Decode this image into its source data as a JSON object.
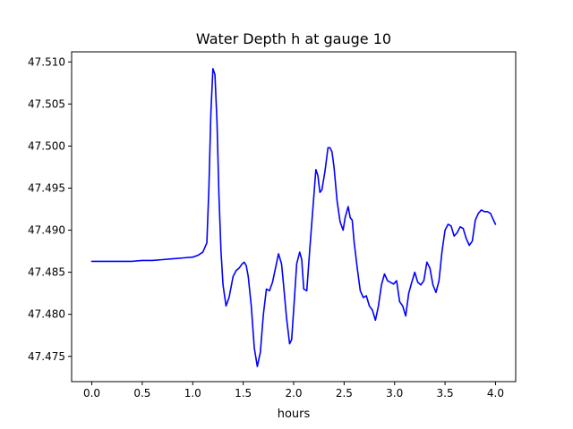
{
  "chart_data": {
    "type": "line",
    "title": "Water Depth h at gauge 10",
    "xlabel": "hours",
    "ylabel": "",
    "xlim": [
      -0.2,
      4.2
    ],
    "ylim": [
      47.472,
      47.5112
    ],
    "xticks": [
      0.0,
      0.5,
      1.0,
      1.5,
      2.0,
      2.5,
      3.0,
      3.5,
      4.0
    ],
    "xtick_labels": [
      "0.0",
      "0.5",
      "1.0",
      "1.5",
      "2.0",
      "2.5",
      "3.0",
      "3.5",
      "4.0"
    ],
    "yticks": [
      47.475,
      47.48,
      47.485,
      47.49,
      47.495,
      47.5,
      47.505,
      47.51
    ],
    "ytick_labels": [
      "47.475",
      "47.480",
      "47.485",
      "47.490",
      "47.495",
      "47.500",
      "47.505",
      "47.510"
    ],
    "grid": false,
    "series": [
      {
        "color": "#0000ff",
        "x": [
          0.0,
          0.1,
          0.2,
          0.3,
          0.4,
          0.5,
          0.6,
          0.7,
          0.8,
          0.9,
          1.0,
          1.05,
          1.1,
          1.14,
          1.16,
          1.18,
          1.2,
          1.22,
          1.24,
          1.26,
          1.28,
          1.3,
          1.33,
          1.36,
          1.4,
          1.43,
          1.46,
          1.49,
          1.51,
          1.53,
          1.55,
          1.58,
          1.61,
          1.64,
          1.67,
          1.7,
          1.73,
          1.76,
          1.79,
          1.82,
          1.85,
          1.88,
          1.9,
          1.93,
          1.96,
          1.98,
          2.0,
          2.03,
          2.06,
          2.08,
          2.1,
          2.13,
          2.16,
          2.19,
          2.22,
          2.24,
          2.26,
          2.28,
          2.31,
          2.34,
          2.36,
          2.38,
          2.4,
          2.43,
          2.46,
          2.49,
          2.51,
          2.54,
          2.56,
          2.58,
          2.6,
          2.63,
          2.66,
          2.69,
          2.72,
          2.75,
          2.78,
          2.81,
          2.84,
          2.87,
          2.9,
          2.93,
          2.96,
          2.99,
          3.02,
          3.05,
          3.08,
          3.11,
          3.14,
          3.17,
          3.2,
          3.23,
          3.26,
          3.29,
          3.32,
          3.35,
          3.38,
          3.41,
          3.44,
          3.47,
          3.5,
          3.53,
          3.56,
          3.59,
          3.62,
          3.65,
          3.68,
          3.71,
          3.74,
          3.77,
          3.8,
          3.83,
          3.86,
          3.89,
          3.92,
          3.95,
          3.98,
          4.0
        ],
        "y": [
          47.4863,
          47.4863,
          47.4863,
          47.4863,
          47.4863,
          47.4864,
          47.4864,
          47.4865,
          47.4866,
          47.4867,
          47.4868,
          47.487,
          47.4874,
          47.4885,
          47.495,
          47.504,
          47.5092,
          47.5085,
          47.503,
          47.494,
          47.4875,
          47.4835,
          47.481,
          47.482,
          47.4845,
          47.4852,
          47.4855,
          47.486,
          47.4862,
          47.4858,
          47.4845,
          47.481,
          47.476,
          47.4738,
          47.4755,
          47.48,
          47.483,
          47.4828,
          47.4838,
          47.4855,
          47.4872,
          47.486,
          47.4835,
          47.4795,
          47.4765,
          47.477,
          47.4805,
          47.486,
          47.4874,
          47.4865,
          47.483,
          47.4828,
          47.4878,
          47.4925,
          47.4972,
          47.4965,
          47.4945,
          47.4948,
          47.497,
          47.4998,
          47.4998,
          47.4993,
          47.4975,
          47.4935,
          47.491,
          47.49,
          47.4915,
          47.4928,
          47.4915,
          47.4912,
          47.4885,
          47.4855,
          47.4828,
          47.482,
          47.4822,
          47.481,
          47.4805,
          47.4793,
          47.481,
          47.4835,
          47.4848,
          47.484,
          47.4838,
          47.4836,
          47.484,
          47.4815,
          47.481,
          47.4798,
          47.4825,
          47.4838,
          47.485,
          47.4838,
          47.4835,
          47.484,
          47.4862,
          47.4855,
          47.4835,
          47.4826,
          47.484,
          47.4875,
          47.49,
          47.4907,
          47.4905,
          47.4893,
          47.4897,
          47.4904,
          47.4902,
          47.489,
          47.4882,
          47.4887,
          47.4912,
          47.492,
          47.4924,
          47.4922,
          47.4922,
          47.492,
          47.4912,
          47.4907
        ]
      }
    ]
  }
}
